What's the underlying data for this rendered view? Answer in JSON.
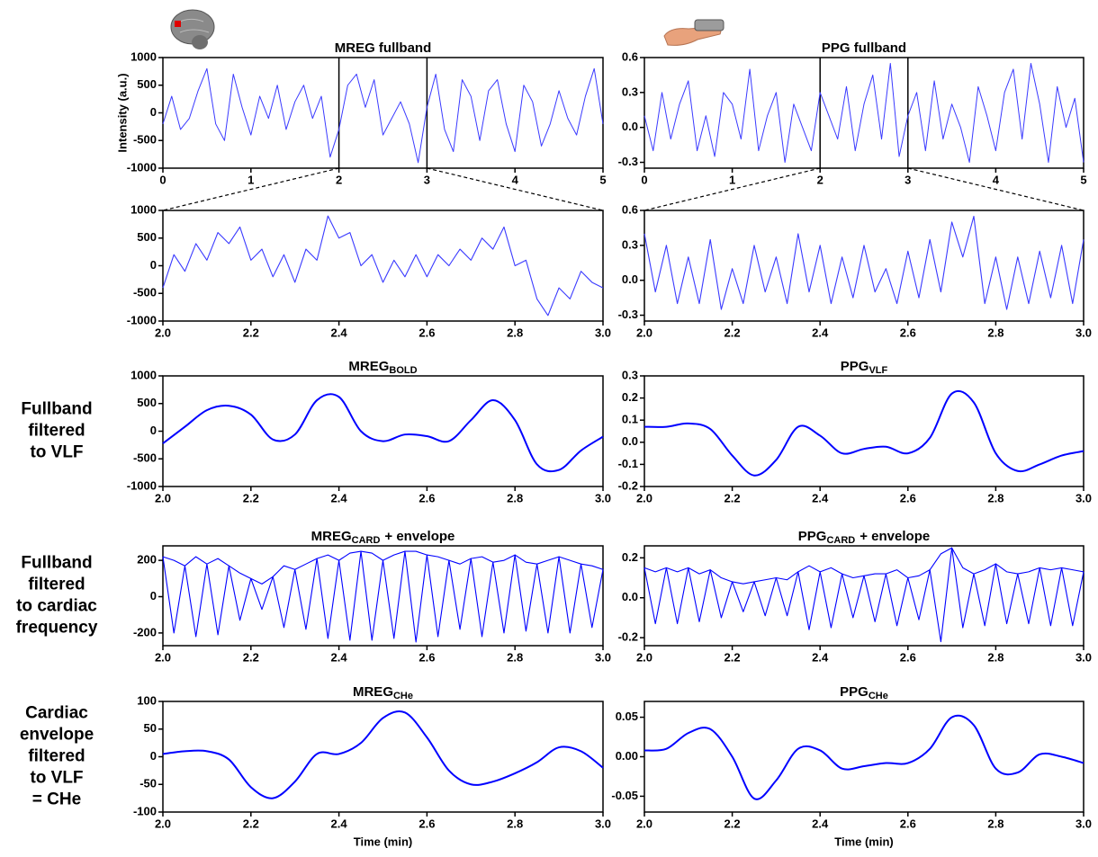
{
  "row_labels": [
    [
      "Fullband",
      "filtered",
      "to VLF"
    ],
    [
      "Fullband",
      "filtered",
      "to cardiac",
      "frequency"
    ],
    [
      "Cardiac",
      "envelope",
      "filtered",
      "to VLF",
      "= CHe"
    ]
  ],
  "chart_data": [
    {
      "type": "line",
      "title": "MREG fullband",
      "ylabel": "Intensity (a.u.)",
      "xlim": [
        0,
        5
      ],
      "xticks": [
        0,
        1,
        2,
        3,
        4,
        5
      ],
      "ylim": [
        -1000,
        1000
      ],
      "yticks": [
        -1000,
        -500,
        0,
        500,
        1000
      ],
      "highlight_range": [
        2,
        3
      ],
      "x": [
        0,
        0.1,
        0.2,
        0.3,
        0.4,
        0.5,
        0.6,
        0.7,
        0.8,
        0.9,
        1,
        1.1,
        1.2,
        1.3,
        1.4,
        1.5,
        1.6,
        1.7,
        1.8,
        1.9,
        2,
        2.1,
        2.2,
        2.3,
        2.4,
        2.5,
        2.6,
        2.7,
        2.8,
        2.9,
        3,
        3.1,
        3.2,
        3.3,
        3.4,
        3.5,
        3.6,
        3.7,
        3.8,
        3.9,
        4,
        4.1,
        4.2,
        4.3,
        4.4,
        4.5,
        4.6,
        4.7,
        4.8,
        4.9,
        5
      ],
      "series": [
        {
          "color": "#3a3aff",
          "values": [
            -200,
            300,
            -300,
            -100,
            400,
            800,
            -200,
            -500,
            700,
            100,
            -400,
            300,
            -100,
            500,
            -300,
            200,
            500,
            -100,
            300,
            -800,
            -300,
            500,
            700,
            100,
            600,
            -400,
            -100,
            200,
            -200,
            -900,
            100,
            700,
            -300,
            -700,
            600,
            300,
            -500,
            400,
            600,
            -200,
            -700,
            500,
            200,
            -600,
            -200,
            400,
            -100,
            -400,
            300,
            800,
            -200
          ]
        }
      ]
    },
    {
      "type": "line",
      "title": "PPG fullband",
      "xlim": [
        0,
        5
      ],
      "xticks": [
        0,
        1,
        2,
        3,
        4,
        5
      ],
      "ylim": [
        -0.35,
        0.6
      ],
      "yticks": [
        -0.3,
        {
          "value": 0,
          "label": "0.0"
        },
        0.3,
        0.6
      ],
      "highlight_range": [
        2,
        3
      ],
      "x": [
        0,
        0.1,
        0.2,
        0.3,
        0.4,
        0.5,
        0.6,
        0.7,
        0.8,
        0.9,
        1,
        1.1,
        1.2,
        1.3,
        1.4,
        1.5,
        1.6,
        1.7,
        1.8,
        1.9,
        2,
        2.1,
        2.2,
        2.3,
        2.4,
        2.5,
        2.6,
        2.7,
        2.8,
        2.9,
        3,
        3.1,
        3.2,
        3.3,
        3.4,
        3.5,
        3.6,
        3.7,
        3.8,
        3.9,
        4,
        4.1,
        4.2,
        4.3,
        4.4,
        4.5,
        4.6,
        4.7,
        4.8,
        4.9,
        5
      ],
      "series": [
        {
          "color": "#3a3aff",
          "values": [
            0.1,
            -0.2,
            0.3,
            -0.1,
            0.2,
            0.4,
            -0.2,
            0.1,
            -0.25,
            0.3,
            0.2,
            -0.1,
            0.5,
            -0.2,
            0.1,
            0.3,
            -0.3,
            0.2,
            0,
            -0.2,
            0.3,
            0.1,
            -0.1,
            0.35,
            -0.2,
            0.2,
            0.45,
            -0.1,
            0.55,
            -0.25,
            0.1,
            0.3,
            -0.2,
            0.4,
            -0.1,
            0.2,
            0,
            -0.3,
            0.35,
            0.1,
            -0.2,
            0.3,
            0.5,
            -0.1,
            0.55,
            0.2,
            -0.3,
            0.35,
            0,
            0.25,
            -0.3
          ]
        }
      ]
    },
    {
      "type": "line",
      "xlim": [
        2,
        3
      ],
      "xticks": [
        {
          "value": 2,
          "label": "2.0"
        },
        2.2,
        2.4,
        2.6,
        2.8,
        {
          "value": 3,
          "label": "3.0"
        }
      ],
      "ylim": [
        -1000,
        1000
      ],
      "yticks": [
        -1000,
        -500,
        0,
        500,
        1000
      ],
      "x": [
        2,
        2.025,
        2.05,
        2.075,
        2.1,
        2.125,
        2.15,
        2.175,
        2.2,
        2.225,
        2.25,
        2.275,
        2.3,
        2.325,
        2.35,
        2.375,
        2.4,
        2.425,
        2.45,
        2.475,
        2.5,
        2.525,
        2.55,
        2.575,
        2.6,
        2.625,
        2.65,
        2.675,
        2.7,
        2.725,
        2.75,
        2.775,
        2.8,
        2.825,
        2.85,
        2.875,
        2.9,
        2.925,
        2.95,
        2.975,
        3
      ],
      "series": [
        {
          "color": "#3a3aff",
          "values": [
            -400,
            200,
            -100,
            400,
            100,
            600,
            400,
            700,
            100,
            300,
            -200,
            200,
            -300,
            300,
            100,
            900,
            500,
            600,
            0,
            200,
            -300,
            100,
            -200,
            200,
            -200,
            200,
            0,
            300,
            100,
            500,
            300,
            700,
            0,
            100,
            -600,
            -900,
            -400,
            -600,
            -100,
            -300,
            -400
          ]
        }
      ]
    },
    {
      "type": "line",
      "xlim": [
        2,
        3
      ],
      "xticks": [
        {
          "value": 2,
          "label": "2.0"
        },
        2.2,
        2.4,
        2.6,
        2.8,
        {
          "value": 3,
          "label": "3.0"
        }
      ],
      "ylim": [
        -0.35,
        0.6
      ],
      "yticks": [
        -0.3,
        {
          "value": 0,
          "label": "0.0"
        },
        0.3,
        0.6
      ],
      "x": [
        2,
        2.025,
        2.05,
        2.075,
        2.1,
        2.125,
        2.15,
        2.175,
        2.2,
        2.225,
        2.25,
        2.275,
        2.3,
        2.325,
        2.35,
        2.375,
        2.4,
        2.425,
        2.45,
        2.475,
        2.5,
        2.525,
        2.55,
        2.575,
        2.6,
        2.625,
        2.65,
        2.675,
        2.7,
        2.725,
        2.75,
        2.775,
        2.8,
        2.825,
        2.85,
        2.875,
        2.9,
        2.925,
        2.95,
        2.975,
        3
      ],
      "series": [
        {
          "color": "#3a3aff",
          "values": [
            0.4,
            -0.1,
            0.3,
            -0.2,
            0.2,
            -0.2,
            0.35,
            -0.25,
            0.1,
            -0.2,
            0.3,
            -0.1,
            0.2,
            -0.2,
            0.4,
            -0.1,
            0.3,
            -0.2,
            0.2,
            -0.15,
            0.3,
            -0.1,
            0.1,
            -0.2,
            0.25,
            -0.15,
            0.35,
            -0.1,
            0.5,
            0.2,
            0.55,
            -0.2,
            0.2,
            -0.25,
            0.2,
            -0.2,
            0.25,
            -0.15,
            0.3,
            -0.2,
            0.35
          ]
        }
      ]
    },
    {
      "type": "line",
      "title": "MREG",
      "title_subscript": "BOLD",
      "interpolation": "spline",
      "xlim": [
        2,
        3
      ],
      "xticks": [
        {
          "value": 2,
          "label": "2.0"
        },
        2.2,
        2.4,
        2.6,
        2.8,
        {
          "value": 3,
          "label": "3.0"
        }
      ],
      "ylim": [
        -1000,
        1000
      ],
      "yticks": [
        -1000,
        -500,
        0,
        500,
        1000
      ],
      "x": [
        2,
        2.05,
        2.1,
        2.15,
        2.2,
        2.25,
        2.3,
        2.35,
        2.4,
        2.45,
        2.5,
        2.55,
        2.6,
        2.65,
        2.7,
        2.75,
        2.8,
        2.85,
        2.9,
        2.95,
        3
      ],
      "series": [
        {
          "color": "#0000ff",
          "values": [
            -220,
            80,
            380,
            460,
            300,
            -150,
            -60,
            560,
            620,
            0,
            -180,
            -60,
            -90,
            -180,
            200,
            560,
            200,
            -600,
            -700,
            -350,
            -100
          ]
        }
      ]
    },
    {
      "type": "line",
      "title": "PPG",
      "title_subscript": "VLF",
      "interpolation": "spline",
      "xlim": [
        2,
        3
      ],
      "xticks": [
        {
          "value": 2,
          "label": "2.0"
        },
        2.2,
        2.4,
        2.6,
        2.8,
        {
          "value": 3,
          "label": "3.0"
        }
      ],
      "ylim": [
        -0.2,
        0.3
      ],
      "yticks": [
        -0.2,
        -0.1,
        {
          "value": 0,
          "label": "0.0"
        },
        0.1,
        0.2,
        0.3
      ],
      "x": [
        2,
        2.05,
        2.1,
        2.15,
        2.2,
        2.25,
        2.3,
        2.35,
        2.4,
        2.45,
        2.5,
        2.55,
        2.6,
        2.65,
        2.7,
        2.75,
        2.8,
        2.85,
        2.9,
        2.95,
        3
      ],
      "series": [
        {
          "color": "#0000ff",
          "values": [
            0.07,
            0.07,
            0.085,
            0.06,
            -0.06,
            -0.15,
            -0.08,
            0.07,
            0.03,
            -0.05,
            -0.03,
            -0.02,
            -0.05,
            0.02,
            0.22,
            0.18,
            -0.05,
            -0.13,
            -0.1,
            -0.06,
            -0.04
          ]
        }
      ]
    },
    {
      "type": "line",
      "title": "MREG",
      "title_subscript": "CARD",
      "title_suffix": "+ envelope",
      "xlim": [
        2,
        3
      ],
      "xticks": [
        {
          "value": 2,
          "label": "2.0"
        },
        2.2,
        2.4,
        2.6,
        2.8,
        {
          "value": 3,
          "label": "3.0"
        }
      ],
      "ylim": [
        -270,
        280
      ],
      "yticks": [
        -200,
        0,
        200
      ],
      "x": [
        2,
        2.025,
        2.05,
        2.075,
        2.1,
        2.125,
        2.15,
        2.175,
        2.2,
        2.225,
        2.25,
        2.275,
        2.3,
        2.325,
        2.35,
        2.375,
        2.4,
        2.425,
        2.45,
        2.475,
        2.5,
        2.525,
        2.55,
        2.575,
        2.6,
        2.625,
        2.65,
        2.675,
        2.7,
        2.725,
        2.75,
        2.775,
        2.8,
        2.825,
        2.85,
        2.875,
        2.9,
        2.925,
        2.95,
        2.975,
        3
      ],
      "series": [
        {
          "color": "#0000ff",
          "values": [
            220,
            -200,
            170,
            -220,
            180,
            -210,
            170,
            -130,
            100,
            -70,
            110,
            -170,
            150,
            -180,
            210,
            -230,
            200,
            -240,
            250,
            -240,
            200,
            -230,
            250,
            -250,
            230,
            -220,
            200,
            -180,
            210,
            -220,
            190,
            -200,
            230,
            -190,
            180,
            -200,
            220,
            -200,
            180,
            -170,
            150
          ]
        },
        {
          "color": "#0000ff",
          "values": [
            220,
            200,
            170,
            220,
            180,
            210,
            170,
            130,
            100,
            70,
            110,
            170,
            150,
            180,
            210,
            230,
            200,
            240,
            250,
            240,
            200,
            230,
            250,
            250,
            230,
            220,
            200,
            180,
            210,
            220,
            190,
            200,
            230,
            190,
            180,
            200,
            220,
            200,
            180,
            170,
            150
          ]
        }
      ]
    },
    {
      "type": "line",
      "title": "PPG",
      "title_subscript": "CARD",
      "title_suffix": "+ envelope",
      "xlim": [
        2,
        3
      ],
      "xticks": [
        {
          "value": 2,
          "label": "2.0"
        },
        2.2,
        2.4,
        2.6,
        2.8,
        {
          "value": 3,
          "label": "3.0"
        }
      ],
      "ylim": [
        -0.24,
        0.26
      ],
      "yticks": [
        -0.2,
        {
          "value": 0,
          "label": "0.0"
        },
        0.2
      ],
      "x": [
        2,
        2.025,
        2.05,
        2.075,
        2.1,
        2.125,
        2.15,
        2.175,
        2.2,
        2.225,
        2.25,
        2.275,
        2.3,
        2.325,
        2.35,
        2.375,
        2.4,
        2.425,
        2.45,
        2.475,
        2.5,
        2.525,
        2.55,
        2.575,
        2.6,
        2.625,
        2.65,
        2.675,
        2.7,
        2.725,
        2.75,
        2.775,
        2.8,
        2.825,
        2.85,
        2.875,
        2.9,
        2.925,
        2.95,
        2.975,
        3
      ],
      "series": [
        {
          "color": "#0000ff",
          "values": [
            0.15,
            -0.13,
            0.15,
            -0.13,
            0.15,
            -0.12,
            0.14,
            -0.1,
            0.08,
            -0.07,
            0.08,
            -0.09,
            0.1,
            -0.09,
            0.13,
            -0.16,
            0.13,
            -0.15,
            0.12,
            -0.1,
            0.11,
            -0.12,
            0.12,
            -0.14,
            0.1,
            -0.11,
            0.14,
            -0.22,
            0.25,
            -0.15,
            0.12,
            -0.14,
            0.17,
            -0.13,
            0.12,
            -0.13,
            0.15,
            -0.14,
            0.15,
            -0.14,
            0.13
          ]
        },
        {
          "color": "#0000ff",
          "values": [
            0.15,
            0.13,
            0.15,
            0.13,
            0.15,
            0.12,
            0.14,
            0.1,
            0.08,
            0.07,
            0.08,
            0.09,
            0.1,
            0.09,
            0.13,
            0.16,
            0.13,
            0.15,
            0.12,
            0.1,
            0.11,
            0.12,
            0.12,
            0.14,
            0.1,
            0.11,
            0.14,
            0.22,
            0.25,
            0.15,
            0.12,
            0.14,
            0.17,
            0.13,
            0.12,
            0.13,
            0.15,
            0.14,
            0.15,
            0.14,
            0.13
          ]
        }
      ]
    },
    {
      "type": "line",
      "title": "MREG",
      "title_subscript": "CHe",
      "xlabel": "Time (min)",
      "interpolation": "spline",
      "xlim": [
        2,
        3
      ],
      "xticks": [
        {
          "value": 2,
          "label": "2.0"
        },
        2.2,
        2.4,
        2.6,
        2.8,
        {
          "value": 3,
          "label": "3.0"
        }
      ],
      "ylim": [
        -100,
        100
      ],
      "yticks": [
        -100,
        -50,
        0,
        50,
        100
      ],
      "x": [
        2,
        2.05,
        2.1,
        2.15,
        2.2,
        2.25,
        2.3,
        2.35,
        2.4,
        2.45,
        2.5,
        2.55,
        2.6,
        2.65,
        2.7,
        2.75,
        2.8,
        2.85,
        2.9,
        2.95,
        3
      ],
      "series": [
        {
          "color": "#0000ff",
          "values": [
            5,
            10,
            10,
            -5,
            -55,
            -75,
            -45,
            5,
            5,
            25,
            70,
            80,
            35,
            -25,
            -50,
            -45,
            -30,
            -10,
            17,
            10,
            -20
          ]
        }
      ]
    },
    {
      "type": "line",
      "title": "PPG",
      "title_subscript": "CHe",
      "xlabel": "Time (min)",
      "interpolation": "spline",
      "xlim": [
        2,
        3
      ],
      "xticks": [
        {
          "value": 2,
          "label": "2.0"
        },
        2.2,
        2.4,
        2.6,
        2.8,
        {
          "value": 3,
          "label": "3.0"
        }
      ],
      "ylim": [
        -0.07,
        0.07
      ],
      "yticks": [
        -0.05,
        {
          "value": 0,
          "label": "0.00"
        },
        0.05
      ],
      "x": [
        2,
        2.05,
        2.1,
        2.15,
        2.2,
        2.25,
        2.3,
        2.35,
        2.4,
        2.45,
        2.5,
        2.55,
        2.6,
        2.65,
        2.7,
        2.75,
        2.8,
        2.85,
        2.9,
        2.95,
        3
      ],
      "series": [
        {
          "color": "#0000ff",
          "values": [
            0.008,
            0.01,
            0.03,
            0.035,
            0,
            -0.053,
            -0.03,
            0.01,
            0.008,
            -0.015,
            -0.012,
            -0.008,
            -0.008,
            0.01,
            0.05,
            0.04,
            -0.015,
            -0.02,
            0.003,
            0,
            -0.008
          ]
        }
      ]
    }
  ]
}
